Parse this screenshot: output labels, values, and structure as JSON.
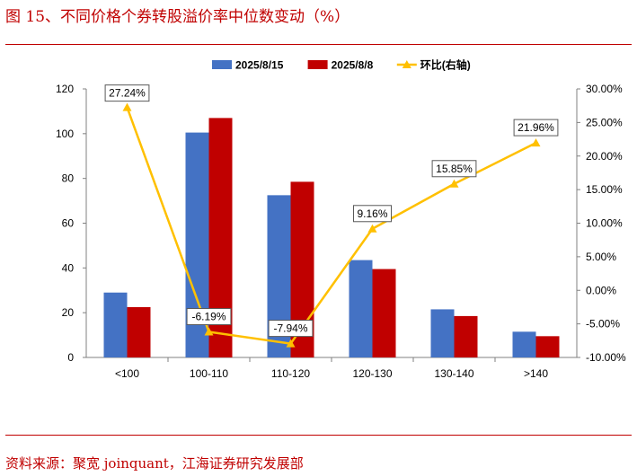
{
  "page": {
    "figure_title": "图 15、不同价格个券转股溢价率中位数变动（%）",
    "source": "资料来源：聚宽 joinquant，江海证券研究发展部"
  },
  "chart_data": {
    "type": "bar",
    "categories": [
      "<100",
      "100-110",
      "110-120",
      "120-130",
      "130-140",
      ">140"
    ],
    "series": [
      {
        "name": "2025/8/15",
        "type": "bar",
        "axis": "left",
        "color": "#4472c4",
        "values": [
          29,
          100.5,
          72.5,
          43.5,
          21.5,
          11.5
        ]
      },
      {
        "name": "2025/8/8",
        "type": "bar",
        "axis": "left",
        "color": "#c00000",
        "values": [
          22.5,
          107,
          78.5,
          39.5,
          18.5,
          9.5
        ]
      },
      {
        "name": "环比(右轴)",
        "type": "line",
        "axis": "right",
        "color": "#ffc000",
        "values": [
          27.24,
          -6.19,
          -7.94,
          9.16,
          15.85,
          21.96
        ],
        "labels": [
          "27.24%",
          "-6.19%",
          "-7.94%",
          "9.16%",
          "15.85%",
          "21.96%"
        ]
      }
    ],
    "ylim": [
      0,
      120
    ],
    "y_ticks": [
      0,
      20,
      40,
      60,
      80,
      100,
      120
    ],
    "y2lim": [
      -10,
      30
    ],
    "y2_ticks": [
      "-10.00%",
      "-5.00%",
      "0.00%",
      "5.00%",
      "10.00%",
      "15.00%",
      "20.00%",
      "25.00%",
      "30.00%"
    ],
    "legend": "top-center",
    "grid": false
  }
}
